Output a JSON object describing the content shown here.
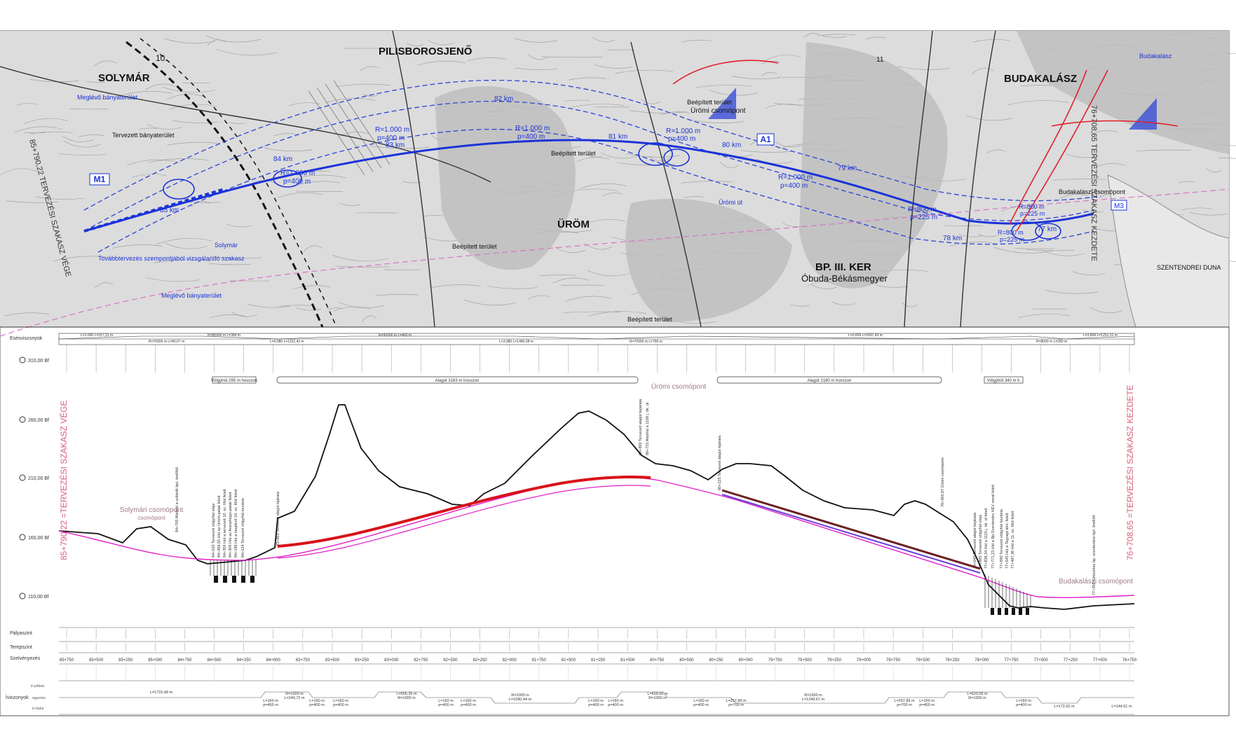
{
  "map": {
    "towns": [
      "SOLYMÁR",
      "PILISBOROSJENŐ",
      "ÜRÖM",
      "BUDAKALÁSZ",
      "BP. III. KER",
      "Óbuda-Békásmegyer"
    ],
    "motorway_labels": [
      "M1",
      "A1",
      "M3",
      "10.",
      "11"
    ],
    "km_labels": [
      "85 km",
      "84 km",
      "83 km",
      "82 km",
      "81 km",
      "80 km",
      "79 km",
      "78 km",
      "77 km"
    ],
    "radius_labels": [
      "R=1.000 m",
      "p=400 m",
      "R=1.000 m",
      "p=400 m",
      "R=1.000 m",
      "p=400 m",
      "R=1.000 m",
      "p=400 m",
      "R=1.000 m",
      "p=400 m",
      "R=800 m",
      "p=225 m",
      "R=800 m",
      "p=225 m",
      "R=800 m",
      "p=225 m"
    ],
    "area_labels": [
      "Beépített terület",
      "Beépített terület",
      "Beépített terület",
      "Beépített terület",
      "Tervezett bányaterület",
      "Meglévő bányaterület",
      "Meglévő bányaterület",
      "Továbbtervezés szempontjából vizsgálandó szakasz",
      "Budakalászi csomópont",
      "Ürömi csomópont",
      "SZENTENDREI DUNA",
      "Budakalász",
      "Ürömi út",
      "Solymár"
    ],
    "section_labels": [
      "85+790,22 TERVEZÉSI SZAKASZ VÉGE",
      "76+708,65 TERVEZÉSI SZAKASZ KEZDETE"
    ]
  },
  "profile": {
    "row_labels": [
      "Esésviszonyok",
      "Pályaszint",
      "Terepszint",
      "Szelvényezés",
      "Íviszonyok"
    ],
    "iv_sub_labels": [
      "in jobbra",
      "egyenes",
      "in balra"
    ],
    "elevations": [
      "310,00 Bf",
      "260,00 Bf",
      "210,00 Bf",
      "160,00 Bf",
      "110,00 Bf"
    ],
    "structures": [
      "Völgyhíd 295 m hosszon",
      "Alagút 3163 m hosszon",
      "Alagút 2180 m hosszon",
      "Völgyhíd 340 m h."
    ],
    "junctions": [
      "Solymári csomópont",
      "Ürömi csomópont",
      "Budakalászi csomópont"
    ],
    "side_titles": [
      "85+790,22 =TERVEZÉSI SZAKASZ VÉGE",
      "76+708,65 =TERVEZÉSI SZAKASZ KEZDETE"
    ],
    "stations": [
      "85+750",
      "85+500",
      "85+250",
      "85+000",
      "84+750",
      "84+500",
      "84+250",
      "84+000",
      "83+750",
      "83+500",
      "83+250",
      "83+000",
      "82+750",
      "82+500",
      "82+250",
      "82+000",
      "81+750",
      "81+500",
      "81+250",
      "81+000",
      "80+750",
      "80+500",
      "80+250",
      "80+000",
      "79+750",
      "79+500",
      "79+250",
      "79+000",
      "78+750",
      "78+500",
      "78+250",
      "78+000",
      "77+750",
      "77+500",
      "77+250",
      "77+000",
      "76+750"
    ],
    "iv_labels": [
      "L=1715,48 m",
      "L=160 m p=400 m",
      "R=1000 m L=240,72 m",
      "L=160 m p=400 m",
      "L=160 m p=400 m",
      "L=565,36 m R=1000 m",
      "L=160 m p=400 m",
      "L=160 m p=400 m",
      "R=1000 m L=1090,44 m",
      "L=160 m p=400 m",
      "L=160 m p=400 m",
      "L=609,66 m R=1000 m",
      "L=160 m p=400 m",
      "L=257,89 m p=700 m",
      "R=1000 m L=1249,67 m",
      "L=257,89 m p=700 m",
      "L=160 m p=400 m",
      "L=620,09 m R=1000 m",
      "L=160 m p=400 m",
      "L=172,62 m",
      "L=144,61 m"
    ],
    "grade_labels": [
      "L=1.000 L=327,31 m",
      "R=70000 m L=80,07 m",
      "R=80000 m L=384 m",
      "L=0,980 L=1102,43 m",
      "R=35000 m L=450 m",
      "L=3,985 L=1486,08 m",
      "R=70000 m L=780 m",
      "L=0,839 L=2697,43 m",
      "R=8000 m L=280 m",
      "L=3,809 L=1251,51 m"
    ],
    "annotations": [
      "84+765 Alsóhíd a szilárdit bpt. önéllítő",
      "84+520 Tervezett völgyhíd eleje",
      "84+456,55 Híd az Ürömi-patak felett",
      "84+359 Híd a tervezett 10. sz. főút felett",
      "84+309 Híd az Aranyhegyi-patak felett",
      "84+188 Híd a meglévő 10. sz. főút felett",
      "84+124 Tervezett völgyhíd kezdete",
      "83+963 Tervezett alagút kijárata",
      "80+800 Tervezett alagút bejárata",
      "80+725 Alsóhíd a 1109 j. ök. út",
      "80+225 Tervezett alagút kijárata",
      "78+305,87 Ürömi csomópont",
      "78+045 Tervezett alagút bejárata",
      "77+895 Tervezett völgyhíd eleje",
      "77+838,34 Híd a 1115 j. ök. út felett",
      "77+771,23 Híd a Bp-Szentendre HÉV vonal felett",
      "77+690 Tervezett völgyhíd kezdete",
      "77+545 Híd a Tegnapi átm. felett",
      "77+487,36 Híd a 11. sz. főút felett",
      "77+350 Kétszintes bp. szentendrei bpt. önéllítő"
    ]
  }
}
